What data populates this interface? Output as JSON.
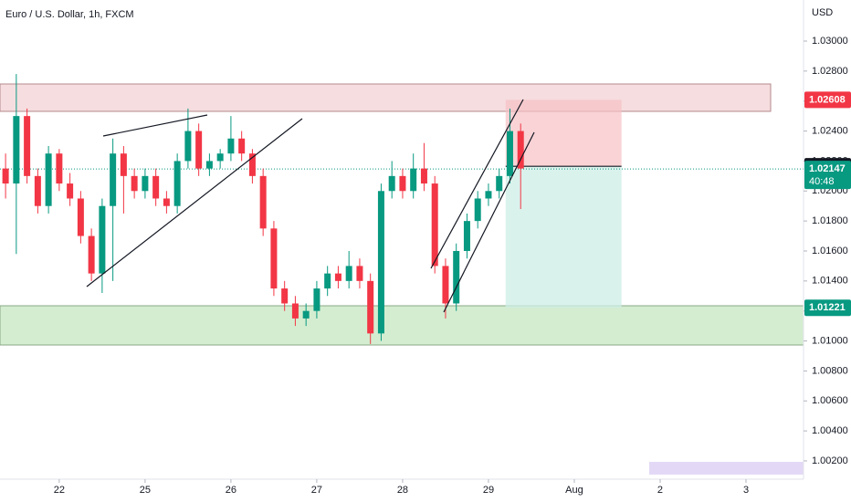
{
  "chart_data": {
    "type": "candlestick",
    "title": "Euro / U.S. Dollar, 1h, FXCM",
    "currency": "USD",
    "x": [
      -0.625,
      -0.5,
      -0.375,
      -0.25,
      -0.125,
      0,
      0.125,
      0.25,
      0.375,
      0.5,
      0.625,
      0.75,
      0.875,
      1,
      1.125,
      1.25,
      1.375,
      1.5,
      1.625,
      1.75,
      1.875,
      2,
      2.125,
      2.25,
      2.375,
      2.5,
      2.625,
      2.75,
      2.875,
      3,
      3.125,
      3.25,
      3.375,
      3.5,
      3.625,
      3.75,
      3.875,
      4,
      4.125,
      4.25,
      4.375,
      4.5,
      4.625,
      4.75,
      4.875,
      5,
      5.125,
      5.25,
      5.375
    ],
    "open": [
      1.0215,
      1.0205,
      1.025,
      1.021,
      1.019,
      1.0225,
      1.0205,
      1.0195,
      1.017,
      1.0145,
      1.019,
      1.0225,
      1.021,
      1.02,
      1.021,
      1.0195,
      1.019,
      1.022,
      1.024,
      1.0215,
      1.022,
      1.0225,
      1.0235,
      1.0225,
      1.021,
      1.0175,
      1.0135,
      1.0125,
      1.0115,
      1.012,
      1.0135,
      1.0145,
      1.014,
      1.015,
      1.014,
      1.0105,
      1.02,
      1.021,
      1.02,
      1.0215,
      1.0205,
      1.015,
      1.0125,
      1.016,
      1.018,
      1.0195,
      1.02,
      1.021,
      1.024
    ],
    "high": [
      1.0225,
      1.0278,
      1.0255,
      1.0215,
      1.023,
      1.0228,
      1.0212,
      1.02,
      1.0175,
      1.0195,
      1.0235,
      1.023,
      1.0215,
      1.0215,
      1.0215,
      1.02,
      1.0225,
      1.0255,
      1.0245,
      1.0225,
      1.0228,
      1.025,
      1.024,
      1.0228,
      1.0215,
      1.018,
      1.014,
      1.013,
      1.0125,
      1.014,
      1.015,
      1.015,
      1.016,
      1.0155,
      1.0145,
      1.0205,
      1.022,
      1.0215,
      1.0225,
      1.0232,
      1.021,
      1.0155,
      1.0165,
      1.0185,
      1.02,
      1.0205,
      1.0215,
      1.0255,
      1.0245
    ],
    "low": [
      1.0195,
      1.0158,
      1.0205,
      1.0185,
      1.0185,
      1.02,
      1.019,
      1.0165,
      1.014,
      1.0132,
      1.014,
      1.0185,
      1.0195,
      1.0195,
      1.019,
      1.0185,
      1.0185,
      1.0215,
      1.021,
      1.021,
      1.0215,
      1.022,
      1.022,
      1.0205,
      1.017,
      1.013,
      1.012,
      1.011,
      1.011,
      1.0115,
      1.013,
      1.0135,
      1.0135,
      1.0135,
      1.0098,
      1.01,
      1.0195,
      1.0195,
      1.0195,
      1.02,
      1.0145,
      1.0115,
      1.012,
      1.0155,
      1.0175,
      1.019,
      1.0195,
      1.0205,
      1.0188
    ],
    "close": [
      1.0205,
      1.025,
      1.021,
      1.019,
      1.0225,
      1.0205,
      1.0195,
      1.017,
      1.0145,
      1.019,
      1.0225,
      1.021,
      1.02,
      1.021,
      1.0195,
      1.019,
      1.022,
      1.024,
      1.0215,
      1.022,
      1.0225,
      1.0235,
      1.0225,
      1.021,
      1.0175,
      1.0135,
      1.0125,
      1.0115,
      1.012,
      1.0135,
      1.0145,
      1.014,
      1.015,
      1.014,
      1.0105,
      1.02,
      1.021,
      1.02,
      1.0215,
      1.0205,
      1.015,
      1.0125,
      1.016,
      1.018,
      1.0195,
      1.02,
      1.021,
      1.024,
      1.0215
    ],
    "up_color": "#089981",
    "down_color": "#f23645",
    "xlim": [
      -0.69,
      8.67
    ],
    "ylim": [
      1.00078,
      1.03274
    ],
    "xticks": [
      {
        "value": 0,
        "label": "22"
      },
      {
        "value": 1,
        "label": "25"
      },
      {
        "value": 2,
        "label": "26"
      },
      {
        "value": 3,
        "label": "27"
      },
      {
        "value": 4,
        "label": "28"
      },
      {
        "value": 5,
        "label": "29"
      },
      {
        "value": 6,
        "label": "Aug"
      },
      {
        "value": 7,
        "label": "2"
      },
      {
        "value": 8,
        "label": "3"
      }
    ],
    "yticks": [
      {
        "value": 1.03,
        "label": "1.03000"
      },
      {
        "value": 1.028,
        "label": "1.02800"
      },
      {
        "value": 1.026,
        "label": "1.02600"
      },
      {
        "value": 1.024,
        "label": "1.02400"
      },
      {
        "value": 1.022,
        "label": "1.02200"
      },
      {
        "value": 1.02,
        "label": "1.02000"
      },
      {
        "value": 1.018,
        "label": "1.01800"
      },
      {
        "value": 1.016,
        "label": "1.01600"
      },
      {
        "value": 1.014,
        "label": "1.01400"
      },
      {
        "value": 1.012,
        "label": "1.01200"
      },
      {
        "value": 1.01,
        "label": "1.01000"
      },
      {
        "value": 1.008,
        "label": "1.00800"
      },
      {
        "value": 1.006,
        "label": "1.00600"
      },
      {
        "value": 1.004,
        "label": "1.00400"
      },
      {
        "value": 1.002,
        "label": "1.00200"
      }
    ],
    "position": {
      "stop": {
        "value": 1.02608,
        "label": "1.02608"
      },
      "entry": {
        "value": 1.02165,
        "label": "1.02165"
      },
      "target": {
        "value": 1.01221,
        "label": "1.01221"
      },
      "start": 5.2,
      "end": 6.55
    },
    "last_price": {
      "value": 1.02147,
      "label": "1.02147",
      "countdown": "40:48"
    }
  }
}
